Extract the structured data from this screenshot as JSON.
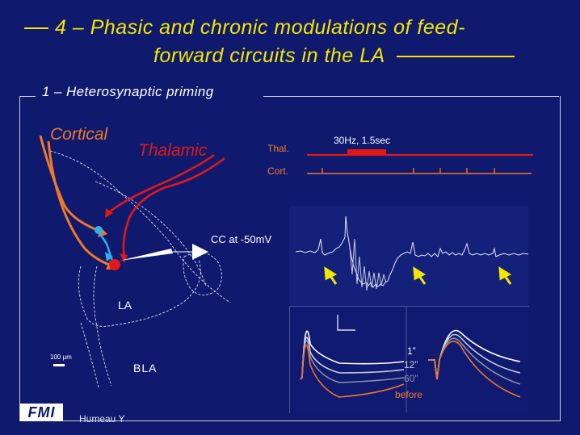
{
  "title": {
    "line1": "4 – Phasic and chronic modulations of feed-",
    "line2": "forward circuits in the LA"
  },
  "section_title": "1 – Heterosynaptic priming",
  "diagram": {
    "cortical": "Cortical",
    "thalamic": "Thalamic",
    "cc_label": "CC at -50mV",
    "la": "LA",
    "bla": "BLA",
    "scale_bar": "100 µm"
  },
  "stimulation": {
    "thal_label": "Thal.",
    "cort_label": "Cort.",
    "train_label": "30Hz, 1.5sec"
  },
  "legend": {
    "t1": "1”",
    "t12": "12”",
    "t60": "60”",
    "before": "before"
  },
  "footer": {
    "logo": "FMI",
    "author": "Humeau Y"
  },
  "colors": {
    "background": "#0f1a6e",
    "title": "#f3e600",
    "thalamic": "#e01818",
    "cortical": "#f07828",
    "arrows": "#f3e600",
    "cyan_neuron": "#31b0ef"
  }
}
